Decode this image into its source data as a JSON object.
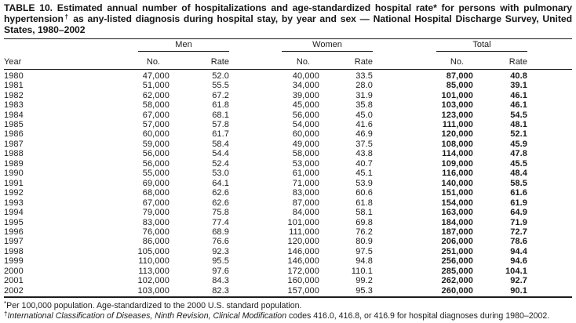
{
  "title": {
    "part1": "TABLE 10. Estimated annual number of hospitalizations and age-standardized hospital rate",
    "sup_star": "*",
    "part2": " for persons with pulmonary hypertension",
    "sup_dagger": "†",
    "part3": " as any-listed diagnosis during hospital stay, by year and sex — National Hospital Discharge Survey, United States, 1980–2002"
  },
  "header": {
    "year_label": "Year",
    "groups": [
      {
        "label": "Men",
        "no_label": "No.",
        "rate_label": "Rate"
      },
      {
        "label": "Women",
        "no_label": "No.",
        "rate_label": "Rate"
      },
      {
        "label": "Total",
        "no_label": "No.",
        "rate_label": "Rate"
      }
    ]
  },
  "rows": [
    {
      "year": "1980",
      "men_no": "47,000",
      "men_rate": "52.0",
      "women_no": "40,000",
      "women_rate": "33.5",
      "total_no": "87,000",
      "total_rate": "40.8"
    },
    {
      "year": "1981",
      "men_no": "51,000",
      "men_rate": "55.5",
      "women_no": "34,000",
      "women_rate": "28.0",
      "total_no": "85,000",
      "total_rate": "39.1"
    },
    {
      "year": "1982",
      "men_no": "62,000",
      "men_rate": "67.2",
      "women_no": "39,000",
      "women_rate": "31.9",
      "total_no": "101,000",
      "total_rate": "46.1"
    },
    {
      "year": "1983",
      "men_no": "58,000",
      "men_rate": "61.8",
      "women_no": "45,000",
      "women_rate": "35.8",
      "total_no": "103,000",
      "total_rate": "46.1"
    },
    {
      "year": "1984",
      "men_no": "67,000",
      "men_rate": "68.1",
      "women_no": "56,000",
      "women_rate": "45.0",
      "total_no": "123,000",
      "total_rate": "54.5"
    },
    {
      "year": "1985",
      "men_no": "57,000",
      "men_rate": "57.8",
      "women_no": "54,000",
      "women_rate": "41.6",
      "total_no": "111,000",
      "total_rate": "48.1"
    },
    {
      "year": "1986",
      "men_no": "60,000",
      "men_rate": "61.7",
      "women_no": "60,000",
      "women_rate": "46.9",
      "total_no": "120,000",
      "total_rate": "52.1"
    },
    {
      "year": "1987",
      "men_no": "59,000",
      "men_rate": "58.4",
      "women_no": "49,000",
      "women_rate": "37.5",
      "total_no": "108,000",
      "total_rate": "45.9"
    },
    {
      "year": "1988",
      "men_no": "56,000",
      "men_rate": "54.4",
      "women_no": "58,000",
      "women_rate": "43.8",
      "total_no": "114,000",
      "total_rate": "47.8"
    },
    {
      "year": "1989",
      "men_no": "56,000",
      "men_rate": "52.4",
      "women_no": "53,000",
      "women_rate": "40.7",
      "total_no": "109,000",
      "total_rate": "45.5"
    },
    {
      "year": "1990",
      "men_no": "55,000",
      "men_rate": "53.0",
      "women_no": "61,000",
      "women_rate": "45.1",
      "total_no": "116,000",
      "total_rate": "48.4"
    },
    {
      "year": "1991",
      "men_no": "69,000",
      "men_rate": "64.1",
      "women_no": "71,000",
      "women_rate": "53.9",
      "total_no": "140,000",
      "total_rate": "58.5"
    },
    {
      "year": "1992",
      "men_no": "68,000",
      "men_rate": "62.6",
      "women_no": "83,000",
      "women_rate": "60.6",
      "total_no": "151,000",
      "total_rate": "61.6"
    },
    {
      "year": "1993",
      "men_no": "67,000",
      "men_rate": "62.6",
      "women_no": "87,000",
      "women_rate": "61.8",
      "total_no": "154,000",
      "total_rate": "61.9"
    },
    {
      "year": "1994",
      "men_no": "79,000",
      "men_rate": "75.8",
      "women_no": "84,000",
      "women_rate": "58.1",
      "total_no": "163,000",
      "total_rate": "64.9"
    },
    {
      "year": "1995",
      "men_no": "83,000",
      "men_rate": "77.4",
      "women_no": "101,000",
      "women_rate": "69.8",
      "total_no": "184,000",
      "total_rate": "71.9"
    },
    {
      "year": "1996",
      "men_no": "76,000",
      "men_rate": "68.9",
      "women_no": "111,000",
      "women_rate": "76.2",
      "total_no": "187,000",
      "total_rate": "72.7"
    },
    {
      "year": "1997",
      "men_no": "86,000",
      "men_rate": "76.6",
      "women_no": "120,000",
      "women_rate": "80.9",
      "total_no": "206,000",
      "total_rate": "78.6"
    },
    {
      "year": "1998",
      "men_no": "105,000",
      "men_rate": "92.3",
      "women_no": "146,000",
      "women_rate": "97.5",
      "total_no": "251,000",
      "total_rate": "94.4"
    },
    {
      "year": "1999",
      "men_no": "110,000",
      "men_rate": "95.5",
      "women_no": "146,000",
      "women_rate": "94.8",
      "total_no": "256,000",
      "total_rate": "94.6"
    },
    {
      "year": "2000",
      "men_no": "113,000",
      "men_rate": "97.6",
      "women_no": "172,000",
      "women_rate": "110.1",
      "total_no": "285,000",
      "total_rate": "104.1"
    },
    {
      "year": "2001",
      "men_no": "102,000",
      "men_rate": "84.3",
      "women_no": "160,000",
      "women_rate": "99.2",
      "total_no": "262,000",
      "total_rate": "92.7"
    },
    {
      "year": "2002",
      "men_no": "103,000",
      "men_rate": "82.3",
      "women_no": "157,000",
      "women_rate": "95.3",
      "total_no": "260,000",
      "total_rate": "90.1"
    }
  ],
  "footnotes": [
    {
      "symbol": "*",
      "text": "Per 100,000 population. Age-standardized to the 2000 U.S. standard population."
    },
    {
      "symbol": "†",
      "italic": "International Classification of Diseases, Ninth Revision, Clinical Modification",
      "text": " codes 416.0, 416.8, or 416.9 for hospital diagnoses during 1980–2002."
    }
  ]
}
